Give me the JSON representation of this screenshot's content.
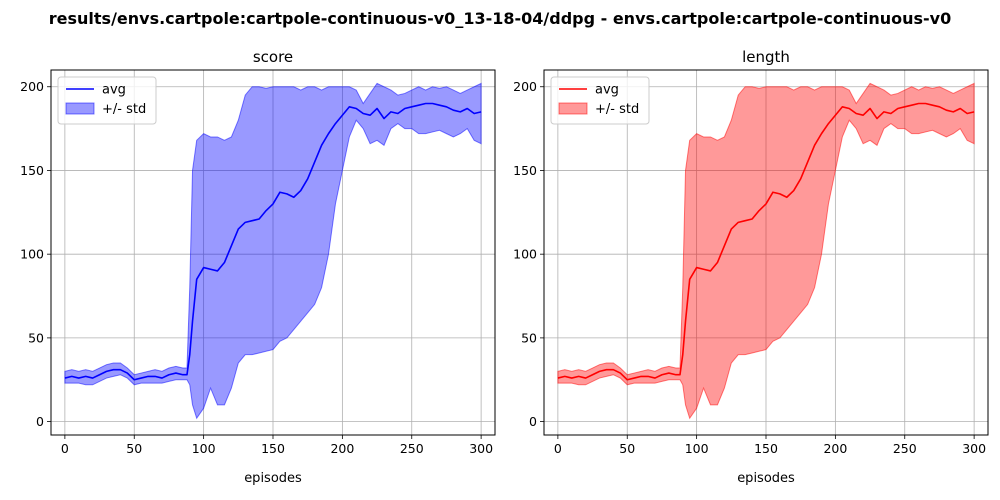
{
  "figure": {
    "title": "results/envs.cartpole:cartpole-continuous-v0_13-18-04/ddpg - envs.cartpole:cartpole-continuous-v0"
  },
  "chart_data": [
    {
      "type": "line",
      "title": "score",
      "xlabel": "episodes",
      "ylabel": "",
      "xlim": [
        -10,
        310
      ],
      "ylim": [
        -8,
        210
      ],
      "xticks": [
        0,
        50,
        100,
        150,
        200,
        250,
        300
      ],
      "yticks": [
        0,
        50,
        100,
        150,
        200
      ],
      "grid": true,
      "legend_position": "top-left",
      "color": "#0000ff",
      "fill_color": "#0000ff",
      "series": [
        {
          "name": "avg",
          "x": [
            0,
            5,
            10,
            15,
            20,
            25,
            30,
            35,
            40,
            45,
            50,
            55,
            60,
            65,
            70,
            75,
            80,
            85,
            88,
            90,
            92,
            95,
            100,
            105,
            110,
            115,
            120,
            125,
            130,
            135,
            140,
            145,
            150,
            155,
            160,
            165,
            170,
            175,
            180,
            185,
            190,
            195,
            200,
            205,
            210,
            215,
            220,
            225,
            230,
            235,
            240,
            245,
            250,
            255,
            260,
            265,
            270,
            275,
            280,
            285,
            290,
            295,
            300
          ],
          "y": [
            26,
            27,
            26,
            27,
            26,
            28,
            30,
            31,
            31,
            29,
            25,
            26,
            27,
            27,
            26,
            28,
            29,
            28,
            28,
            40,
            60,
            85,
            92,
            91,
            90,
            95,
            105,
            115,
            119,
            120,
            121,
            126,
            130,
            137,
            136,
            134,
            138,
            145,
            155,
            165,
            172,
            178,
            183,
            188,
            187,
            184,
            183,
            187,
            181,
            185,
            184,
            187,
            188,
            189,
            190,
            190,
            189,
            188,
            186,
            185,
            187,
            184,
            185
          ]
        },
        {
          "name": "+/- std",
          "x": [
            0,
            5,
            10,
            15,
            20,
            25,
            30,
            35,
            40,
            45,
            50,
            55,
            60,
            65,
            70,
            75,
            80,
            85,
            88,
            90,
            92,
            95,
            100,
            105,
            110,
            115,
            120,
            125,
            130,
            135,
            140,
            145,
            150,
            155,
            160,
            165,
            170,
            175,
            180,
            185,
            190,
            195,
            200,
            205,
            210,
            215,
            220,
            225,
            230,
            235,
            240,
            245,
            250,
            255,
            260,
            265,
            270,
            275,
            280,
            285,
            290,
            295,
            300
          ],
          "lower": [
            23,
            23,
            23,
            22,
            22,
            24,
            26,
            27,
            28,
            26,
            22,
            23,
            23,
            23,
            23,
            24,
            25,
            25,
            25,
            22,
            10,
            2,
            8,
            20,
            10,
            10,
            20,
            35,
            40,
            40,
            41,
            42,
            43,
            48,
            50,
            55,
            60,
            65,
            70,
            80,
            100,
            130,
            150,
            170,
            180,
            175,
            166,
            168,
            165,
            175,
            178,
            175,
            175,
            172,
            172,
            173,
            174,
            172,
            170,
            172,
            175,
            168,
            166
          ],
          "upper": [
            30,
            31,
            30,
            31,
            30,
            32,
            34,
            35,
            35,
            32,
            28,
            29,
            30,
            31,
            30,
            32,
            33,
            32,
            32,
            80,
            150,
            168,
            172,
            170,
            170,
            168,
            170,
            180,
            195,
            200,
            200,
            199,
            200,
            200,
            200,
            200,
            198,
            200,
            200,
            198,
            200,
            200,
            200,
            200,
            198,
            190,
            196,
            202,
            200,
            198,
            195,
            196,
            198,
            200,
            198,
            200,
            199,
            200,
            198,
            196,
            198,
            200,
            202
          ]
        }
      ]
    },
    {
      "type": "line",
      "title": "length",
      "xlabel": "episodes",
      "ylabel": "",
      "xlim": [
        -10,
        310
      ],
      "ylim": [
        -8,
        210
      ],
      "xticks": [
        0,
        50,
        100,
        150,
        200,
        250,
        300
      ],
      "yticks": [
        0,
        50,
        100,
        150,
        200
      ],
      "grid": true,
      "legend_position": "top-left",
      "color": "#ff0000",
      "fill_color": "#ff0000",
      "series": [
        {
          "name": "avg",
          "x": [
            0,
            5,
            10,
            15,
            20,
            25,
            30,
            35,
            40,
            45,
            50,
            55,
            60,
            65,
            70,
            75,
            80,
            85,
            88,
            90,
            92,
            95,
            100,
            105,
            110,
            115,
            120,
            125,
            130,
            135,
            140,
            145,
            150,
            155,
            160,
            165,
            170,
            175,
            180,
            185,
            190,
            195,
            200,
            205,
            210,
            215,
            220,
            225,
            230,
            235,
            240,
            245,
            250,
            255,
            260,
            265,
            270,
            275,
            280,
            285,
            290,
            295,
            300
          ],
          "y": [
            26,
            27,
            26,
            27,
            26,
            28,
            30,
            31,
            31,
            29,
            25,
            26,
            27,
            27,
            26,
            28,
            29,
            28,
            28,
            40,
            60,
            85,
            92,
            91,
            90,
            95,
            105,
            115,
            119,
            120,
            121,
            126,
            130,
            137,
            136,
            134,
            138,
            145,
            155,
            165,
            172,
            178,
            183,
            188,
            187,
            184,
            183,
            187,
            181,
            185,
            184,
            187,
            188,
            189,
            190,
            190,
            189,
            188,
            186,
            185,
            187,
            184,
            185
          ]
        },
        {
          "name": "+/- std",
          "x": [
            0,
            5,
            10,
            15,
            20,
            25,
            30,
            35,
            40,
            45,
            50,
            55,
            60,
            65,
            70,
            75,
            80,
            85,
            88,
            90,
            92,
            95,
            100,
            105,
            110,
            115,
            120,
            125,
            130,
            135,
            140,
            145,
            150,
            155,
            160,
            165,
            170,
            175,
            180,
            185,
            190,
            195,
            200,
            205,
            210,
            215,
            220,
            225,
            230,
            235,
            240,
            245,
            250,
            255,
            260,
            265,
            270,
            275,
            280,
            285,
            290,
            295,
            300
          ],
          "lower": [
            23,
            23,
            23,
            22,
            22,
            24,
            26,
            27,
            28,
            26,
            22,
            23,
            23,
            23,
            23,
            24,
            25,
            25,
            25,
            22,
            10,
            2,
            8,
            20,
            10,
            10,
            20,
            35,
            40,
            40,
            41,
            42,
            43,
            48,
            50,
            55,
            60,
            65,
            70,
            80,
            100,
            130,
            150,
            170,
            180,
            175,
            166,
            168,
            165,
            175,
            178,
            175,
            175,
            172,
            172,
            173,
            174,
            172,
            170,
            172,
            175,
            168,
            166
          ],
          "upper": [
            30,
            31,
            30,
            31,
            30,
            32,
            34,
            35,
            35,
            32,
            28,
            29,
            30,
            31,
            30,
            32,
            33,
            32,
            32,
            80,
            150,
            168,
            172,
            170,
            170,
            168,
            170,
            180,
            195,
            200,
            200,
            199,
            200,
            200,
            200,
            200,
            198,
            200,
            200,
            198,
            200,
            200,
            200,
            200,
            198,
            190,
            196,
            202,
            200,
            198,
            195,
            196,
            198,
            200,
            198,
            200,
            199,
            200,
            198,
            196,
            198,
            200,
            202
          ]
        }
      ]
    }
  ]
}
